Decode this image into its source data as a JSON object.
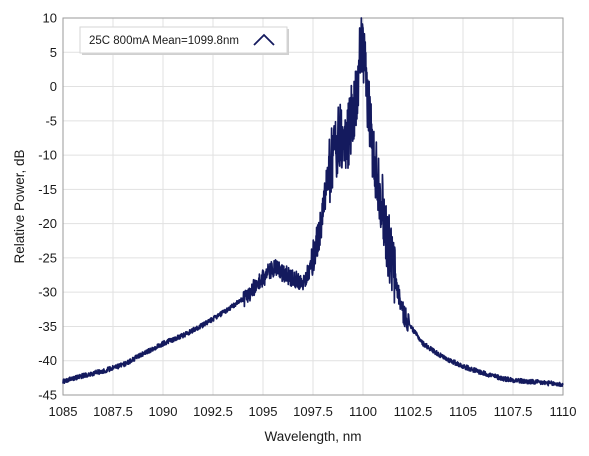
{
  "chart_data": {
    "type": "line",
    "xlabel": "Wavelength, nm",
    "ylabel": "Relative Power, dB",
    "xlim": [
      1085,
      1110
    ],
    "ylim": [
      -45,
      10
    ],
    "xticks": [
      1085,
      1087.5,
      1090,
      1092.5,
      1095,
      1097.5,
      1100,
      1102.5,
      1105,
      1107.5,
      1110
    ],
    "yticks": [
      10,
      5,
      0,
      -5,
      -10,
      -15,
      -20,
      -25,
      -30,
      -35,
      -40,
      -45
    ],
    "grid": true,
    "legend_position": "top-left",
    "series": [
      {
        "name": "25C 800mA Mean=1099.8nm",
        "color": "#141a5e",
        "x": [
          1085,
          1086,
          1087,
          1088,
          1089,
          1090,
          1091,
          1092,
          1093,
          1094,
          1094.5,
          1095,
          1095.3,
          1095.6,
          1096,
          1096.5,
          1097,
          1097.3,
          1097.6,
          1097.9,
          1098.2,
          1098.5,
          1098.8,
          1099.1,
          1099.4,
          1099.7,
          1099.9,
          1100.1,
          1100.3,
          1100.5,
          1100.8,
          1101,
          1101.2,
          1101.4,
          1101.6,
          1101.8,
          1102,
          1102.5,
          1103,
          1103.5,
          1104,
          1105,
          1106,
          1107,
          1108,
          1109,
          1110
        ],
        "y": [
          -43,
          -42.2,
          -41.5,
          -40.6,
          -39,
          -37.5,
          -36.3,
          -34.8,
          -33,
          -31,
          -29.5,
          -28,
          -27,
          -26.5,
          -27.2,
          -28,
          -28.5,
          -27,
          -24,
          -20,
          -14,
          -10,
          -7,
          -9,
          -5,
          -2,
          7,
          2,
          -3,
          -10,
          -14,
          -18,
          -22,
          -25,
          -28,
          -30.5,
          -33,
          -35.5,
          -37.5,
          -38.5,
          -39.5,
          -40.8,
          -41.8,
          -42.6,
          -43,
          -43.2,
          -43.5
        ]
      }
    ]
  }
}
